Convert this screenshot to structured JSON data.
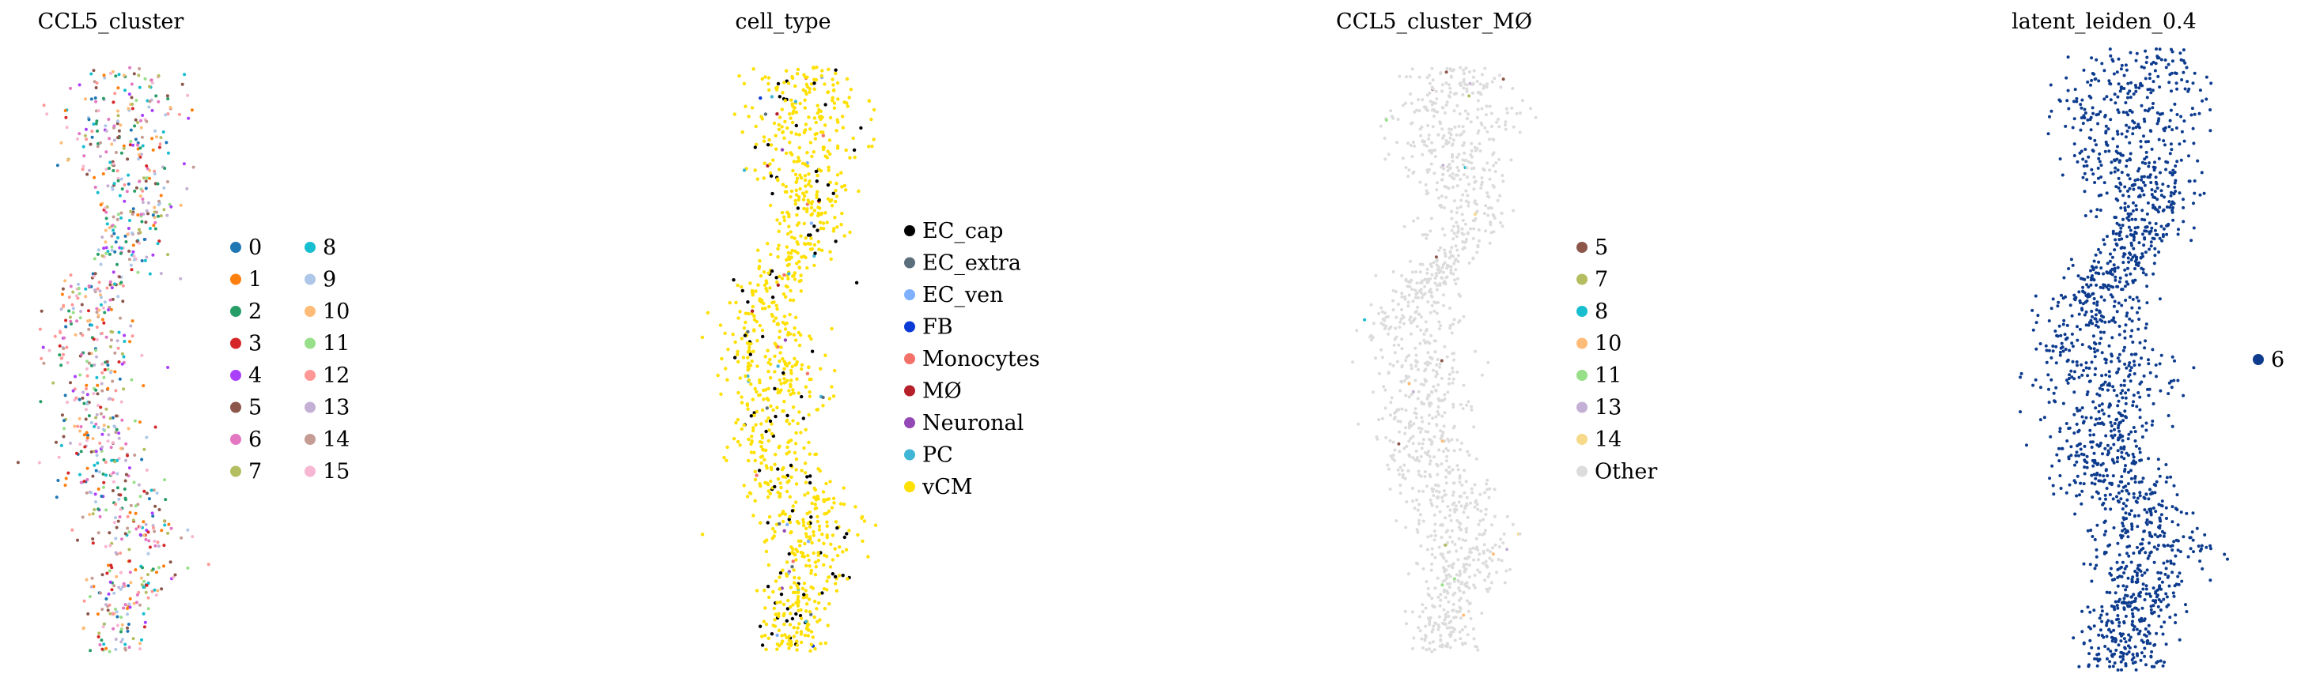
{
  "panels": [
    {
      "title": "CCL5_cluster",
      "legend": {
        "columns": 2,
        "entries": [
          {
            "label": "0",
            "color": "#1f77b4"
          },
          {
            "label": "1",
            "color": "#ff7f0e"
          },
          {
            "label": "2",
            "color": "#279e68"
          },
          {
            "label": "3",
            "color": "#d62728"
          },
          {
            "label": "4",
            "color": "#aa40fc"
          },
          {
            "label": "5",
            "color": "#8c564b"
          },
          {
            "label": "6",
            "color": "#e377c2"
          },
          {
            "label": "7",
            "color": "#b5bd61"
          },
          {
            "label": "8",
            "color": "#17becf"
          },
          {
            "label": "9",
            "color": "#aec7e8"
          },
          {
            "label": "10",
            "color": "#ffbb78"
          },
          {
            "label": "11",
            "color": "#98df8a"
          },
          {
            "label": "12",
            "color": "#ff9896"
          },
          {
            "label": "13",
            "color": "#c5b0d5"
          },
          {
            "label": "14",
            "color": "#c49c94"
          },
          {
            "label": "15",
            "color": "#f7b6d2"
          }
        ]
      }
    },
    {
      "title": "cell_type",
      "legend": {
        "columns": 1,
        "entries": [
          {
            "label": "EC_cap",
            "color": "#000000"
          },
          {
            "label": "EC_extra",
            "color": "#5a6e7c"
          },
          {
            "label": "EC_ven",
            "color": "#7eb0ff"
          },
          {
            "label": "FB",
            "color": "#0b3bd6"
          },
          {
            "label": "Monocytes",
            "color": "#f4716a"
          },
          {
            "label": "MØ",
            "color": "#b5202a"
          },
          {
            "label": "Neuronal",
            "color": "#9448b6"
          },
          {
            "label": "PC",
            "color": "#3fb6d6"
          },
          {
            "label": "vCM",
            "color": "#ffe000"
          }
        ]
      }
    },
    {
      "title": "CCL5_cluster_MØ",
      "legend": {
        "columns": 1,
        "entries": [
          {
            "label": "5",
            "color": "#8c564b"
          },
          {
            "label": "7",
            "color": "#b5bd61"
          },
          {
            "label": "8",
            "color": "#17becf"
          },
          {
            "label": "10",
            "color": "#ffbb78"
          },
          {
            "label": "11",
            "color": "#98df8a"
          },
          {
            "label": "13",
            "color": "#c5b0d5"
          },
          {
            "label": "14",
            "color": "#f7d98a"
          },
          {
            "label": "Other",
            "color": "#dcdcdc"
          }
        ]
      }
    },
    {
      "title": "latent_leiden_0.4",
      "legend": {
        "columns": 1,
        "entries": [
          {
            "label": "6",
            "color": "#0d3b8e"
          }
        ]
      }
    }
  ],
  "chart_data": [
    {
      "type": "scatter",
      "title": "CCL5_cluster",
      "categories": [
        "0",
        "1",
        "2",
        "3",
        "4",
        "5",
        "6",
        "7",
        "8",
        "9",
        "10",
        "11",
        "12",
        "13",
        "14",
        "15"
      ],
      "legend_placement": "right",
      "grid": false,
      "axes": "off"
    },
    {
      "type": "scatter",
      "title": "cell_type",
      "categories": [
        "EC_cap",
        "EC_extra",
        "EC_ven",
        "FB",
        "Monocytes",
        "MØ",
        "Neuronal",
        "PC",
        "vCM"
      ],
      "legend_placement": "right",
      "grid": false,
      "axes": "off"
    },
    {
      "type": "scatter",
      "title": "CCL5_cluster_MØ",
      "categories": [
        "5",
        "7",
        "8",
        "10",
        "11",
        "13",
        "14",
        "Other"
      ],
      "legend_placement": "right",
      "grid": false,
      "axes": "off"
    },
    {
      "type": "scatter",
      "title": "latent_leiden_0.4",
      "categories": [
        "6"
      ],
      "legend_placement": "right",
      "grid": false,
      "axes": "off"
    }
  ]
}
